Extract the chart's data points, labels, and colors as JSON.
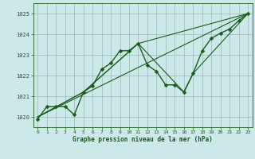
{
  "title": "Graphe pression niveau de la mer (hPa)",
  "bg_color": "#cce8e8",
  "grid_color": "#99bbbb",
  "line_color": "#1a5c1a",
  "xlim": [
    -0.5,
    23.5
  ],
  "ylim": [
    1019.5,
    1025.5
  ],
  "yticks": [
    1020,
    1021,
    1022,
    1023,
    1024,
    1025
  ],
  "xticks": [
    0,
    1,
    2,
    3,
    4,
    5,
    6,
    7,
    8,
    9,
    10,
    11,
    12,
    13,
    14,
    15,
    16,
    17,
    18,
    19,
    20,
    21,
    22,
    23
  ],
  "series": [
    {
      "x": [
        0,
        1,
        2,
        3,
        4,
        5,
        6,
        7,
        8,
        9,
        10,
        11,
        12,
        13,
        14,
        15,
        16,
        17,
        18,
        19,
        20,
        21,
        22,
        23
      ],
      "y": [
        1019.9,
        1020.5,
        1020.5,
        1020.5,
        1020.1,
        1021.2,
        1021.5,
        1022.3,
        1022.6,
        1023.2,
        1023.2,
        1023.55,
        1022.5,
        1022.2,
        1021.55,
        1021.55,
        1021.2,
        1022.1,
        1023.2,
        1023.8,
        1024.05,
        1024.25,
        1024.65,
        1025.0
      ],
      "marker": true,
      "linewidth": 1.0,
      "markersize": 2.5
    },
    {
      "x": [
        0,
        23
      ],
      "y": [
        1020.0,
        1025.0
      ],
      "marker": false,
      "linewidth": 0.8
    },
    {
      "x": [
        0,
        5,
        11,
        23
      ],
      "y": [
        1020.0,
        1021.2,
        1023.55,
        1025.0
      ],
      "marker": false,
      "linewidth": 0.8
    },
    {
      "x": [
        0,
        5,
        11,
        16,
        17,
        23
      ],
      "y": [
        1020.0,
        1021.2,
        1023.55,
        1021.2,
        1022.1,
        1025.0
      ],
      "marker": false,
      "linewidth": 0.8
    }
  ]
}
